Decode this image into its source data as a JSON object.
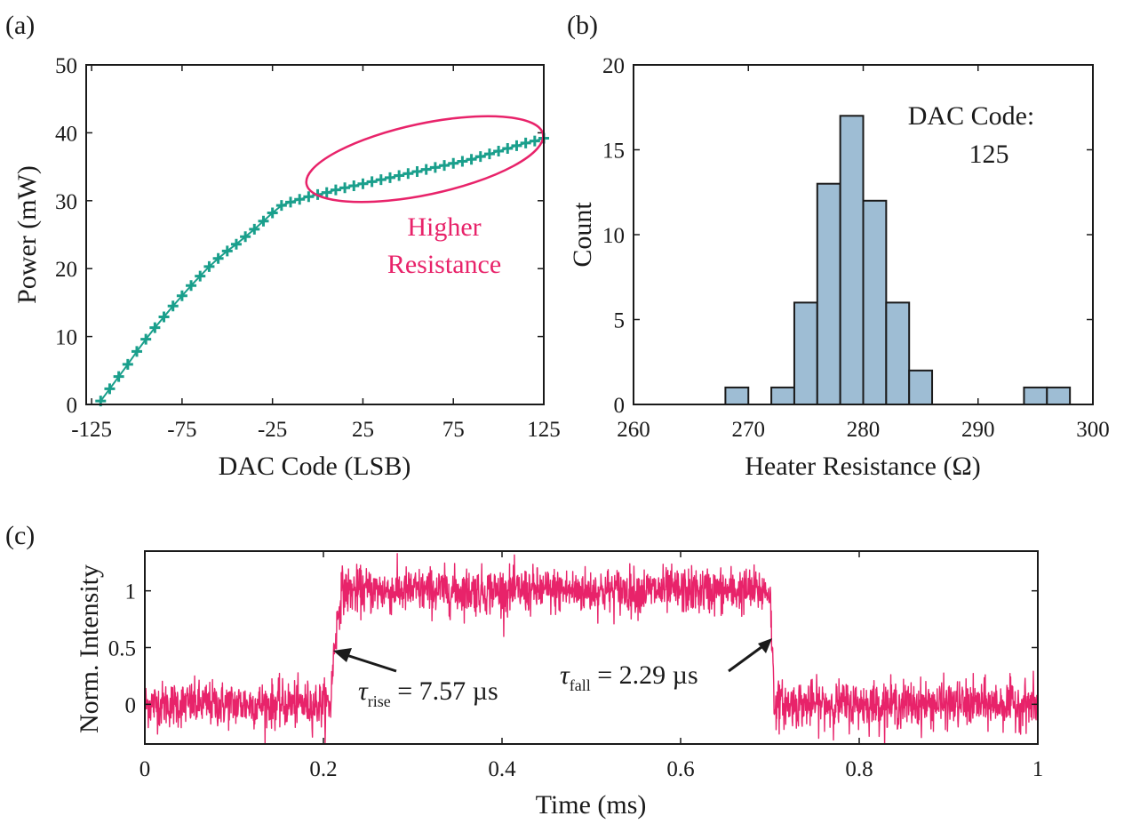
{
  "colors": {
    "teal": "#1a9f8c",
    "pink": "#e8236a",
    "bar_fill": "#9ebdd4",
    "axis": "#1a1a1a"
  },
  "chart_data": [
    {
      "panel": "(a)",
      "type": "scatter",
      "marker": "plus",
      "xlabel": "DAC Code (LSB)",
      "ylabel": "Power (mW)",
      "xlim": [
        -128,
        125
      ],
      "ylim": [
        0,
        50
      ],
      "xticks": [
        -125,
        -75,
        -25,
        25,
        75,
        125
      ],
      "xtick_labels": [
        "-125",
        "-75",
        "-25",
        "25",
        "75",
        "125"
      ],
      "yticks": [
        0,
        10,
        20,
        30,
        40,
        50
      ],
      "ytick_labels": [
        "0",
        "10",
        "20",
        "30",
        "40",
        "50"
      ],
      "series": [
        {
          "color": "#1a9f8c",
          "x": [
            -120,
            -115,
            -110,
            -105,
            -100,
            -95,
            -90,
            -85,
            -80,
            -75,
            -70,
            -65,
            -60,
            -55,
            -50,
            -45,
            -40,
            -35,
            -30,
            -25,
            -20,
            -15,
            -10,
            -5,
            0,
            5,
            10,
            15,
            20,
            25,
            30,
            35,
            40,
            45,
            50,
            55,
            60,
            65,
            70,
            75,
            80,
            85,
            90,
            95,
            100,
            105,
            110,
            115,
            120,
            125
          ],
          "y": [
            0.5,
            2.3,
            4.1,
            5.9,
            7.8,
            9.6,
            11.3,
            12.9,
            14.5,
            16.0,
            17.5,
            18.9,
            20.3,
            21.5,
            22.6,
            23.6,
            24.7,
            25.8,
            27.0,
            28.2,
            29.3,
            29.8,
            30.2,
            30.6,
            30.9,
            31.2,
            31.6,
            31.9,
            32.2,
            32.5,
            32.8,
            33.1,
            33.4,
            33.7,
            34.0,
            34.3,
            34.6,
            34.9,
            35.2,
            35.5,
            35.8,
            36.1,
            36.5,
            36.9,
            37.3,
            37.7,
            38.1,
            38.5,
            38.8,
            39.2
          ]
        }
      ],
      "annotations": {
        "higher_line1": "Higher",
        "higher_line2": "Resistance"
      }
    },
    {
      "panel": "(b)",
      "type": "bar",
      "xlabel": "Heater Resistance (Ω)",
      "ylabel": "Count",
      "xlim": [
        260,
        300
      ],
      "ylim": [
        0,
        20
      ],
      "xticks": [
        260,
        270,
        280,
        290,
        300
      ],
      "xtick_labels": [
        "260",
        "270",
        "280",
        "290",
        "300"
      ],
      "yticks": [
        0,
        5,
        10,
        15,
        20
      ],
      "ytick_labels": [
        "0",
        "5",
        "10",
        "15",
        "20"
      ],
      "bin_width": 2,
      "bin_starts": [
        260,
        262,
        264,
        266,
        268,
        270,
        272,
        274,
        276,
        278,
        280,
        282,
        284,
        286,
        288,
        290,
        292,
        294,
        296
      ],
      "counts": [
        0,
        0,
        0,
        0,
        1,
        0,
        1,
        6,
        13,
        17,
        12,
        6,
        2,
        0,
        0,
        0,
        0,
        1,
        1
      ],
      "annotations": {
        "dac_line1": "DAC Code:",
        "dac_line2": "125"
      }
    },
    {
      "panel": "(c)",
      "type": "line",
      "xlabel": "Time (ms)",
      "ylabel": "Norm. Intensity",
      "xlim": [
        0,
        1
      ],
      "ylim": [
        -0.35,
        1.35
      ],
      "xticks": [
        0,
        0.2,
        0.4,
        0.6,
        0.8,
        1
      ],
      "xtick_labels": [
        "0",
        "0.2",
        "0.4",
        "0.6",
        "0.8",
        "1"
      ],
      "yticks": [
        0,
        0.5,
        1
      ],
      "ytick_labels": [
        "0",
        "0.5",
        "1"
      ],
      "series": [
        {
          "color": "#e8236a",
          "waveform": "noisy square pulse",
          "x": [
            0,
            0.208,
            0.212,
            0.22,
            0.7,
            0.705,
            1
          ],
          "y": [
            0,
            0,
            0.5,
            1,
            1,
            0,
            0
          ],
          "noise_std": 0.1
        }
      ],
      "annotations": {
        "tau_symbol": "τ",
        "rise_sub": "rise",
        "rise_value": " = 7.57 µs",
        "fall_sub": "fall",
        "fall_value": " = 2.29 µs"
      }
    }
  ]
}
